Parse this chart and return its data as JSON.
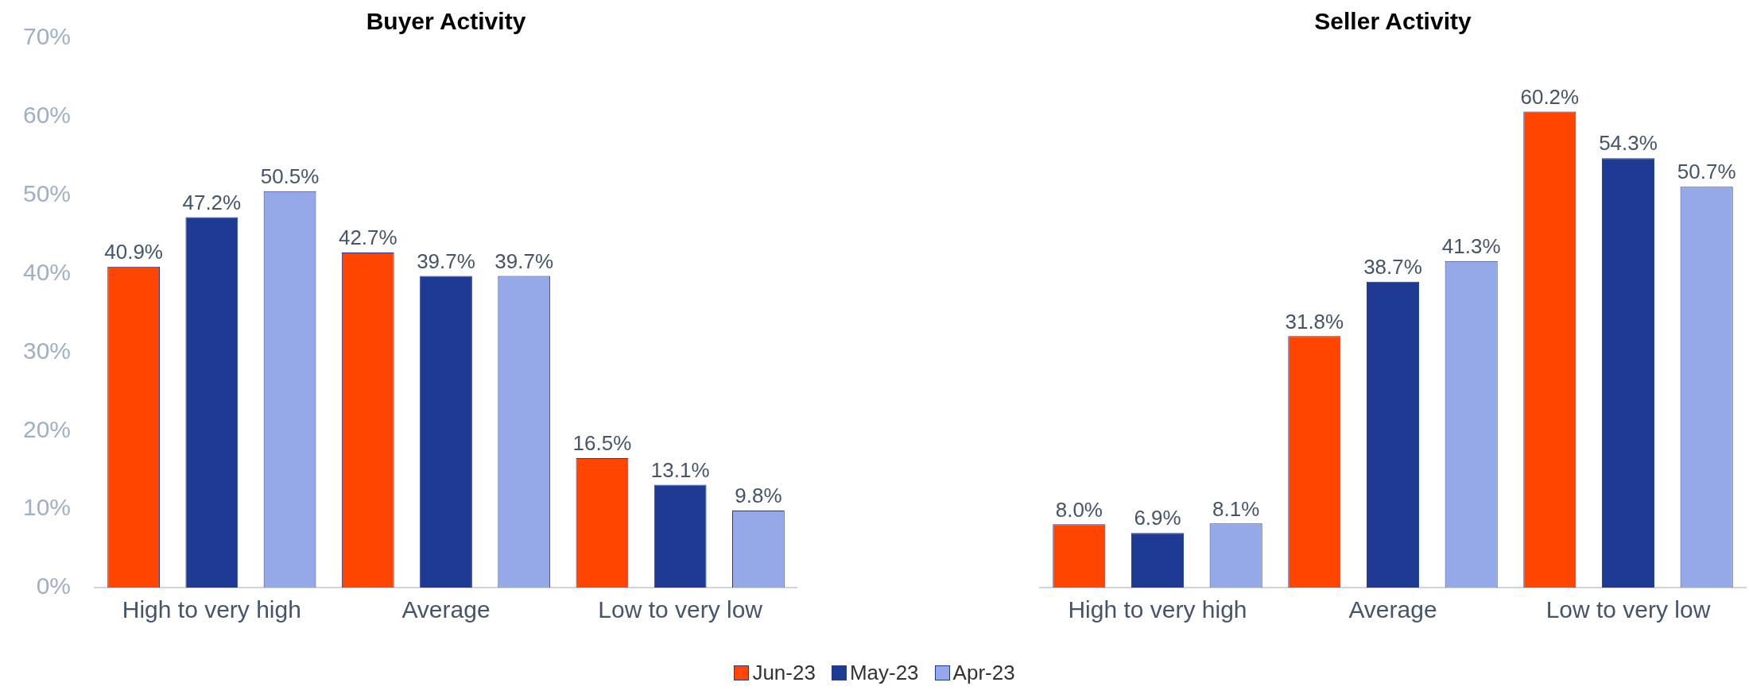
{
  "chart_data": [
    {
      "type": "bar",
      "title": "Buyer Activity",
      "categories": [
        "High to very high",
        "Average",
        "Low to very low"
      ],
      "ylim": [
        0,
        70
      ],
      "yticks": [
        {
          "value": 0,
          "label": "0%"
        },
        {
          "value": 10,
          "label": "10%"
        },
        {
          "value": 20,
          "label": "20%"
        },
        {
          "value": 30,
          "label": "30%"
        },
        {
          "value": 40,
          "label": "40%"
        },
        {
          "value": 50,
          "label": "50%"
        },
        {
          "value": 60,
          "label": "60%"
        },
        {
          "value": 70,
          "label": "70%"
        }
      ],
      "grid": false,
      "legend": "bottom",
      "series": [
        {
          "name": "Jun-23",
          "color": "#ff4500",
          "values": [
            40.9,
            42.7,
            16.5
          ],
          "value_labels": [
            "40.9%",
            "42.7%",
            "16.5%"
          ]
        },
        {
          "name": "May-23",
          "color": "#1f3a93",
          "values": [
            47.2,
            39.7,
            13.1
          ],
          "value_labels": [
            "47.2%",
            "39.7%",
            "13.1%"
          ]
        },
        {
          "name": "Apr-23",
          "color": "#95a8e8",
          "values": [
            50.5,
            39.7,
            9.8
          ],
          "value_labels": [
            "50.5%",
            "39.7%",
            "9.8%"
          ]
        }
      ]
    },
    {
      "type": "bar",
      "title": "Seller Activity",
      "categories": [
        "High to very high",
        "Average",
        "Low to very low"
      ],
      "ylim": [
        0,
        70
      ],
      "grid": false,
      "tick_labels": "x",
      "series": [
        {
          "color": "#ff4500",
          "values": [
            8.0,
            31.8,
            60.2
          ],
          "value_labels": [
            "8.0%",
            "31.8%",
            "60.2%"
          ]
        },
        {
          "color": "#1f3a93",
          "values": [
            6.9,
            38.7,
            54.3
          ],
          "value_labels": [
            "6.9%",
            "38.7%",
            "54.3%"
          ]
        },
        {
          "color": "#95a8e8",
          "values": [
            8.1,
            41.3,
            50.7
          ],
          "value_labels": [
            "8.1%",
            "41.3%",
            "50.7%"
          ]
        }
      ]
    }
  ]
}
